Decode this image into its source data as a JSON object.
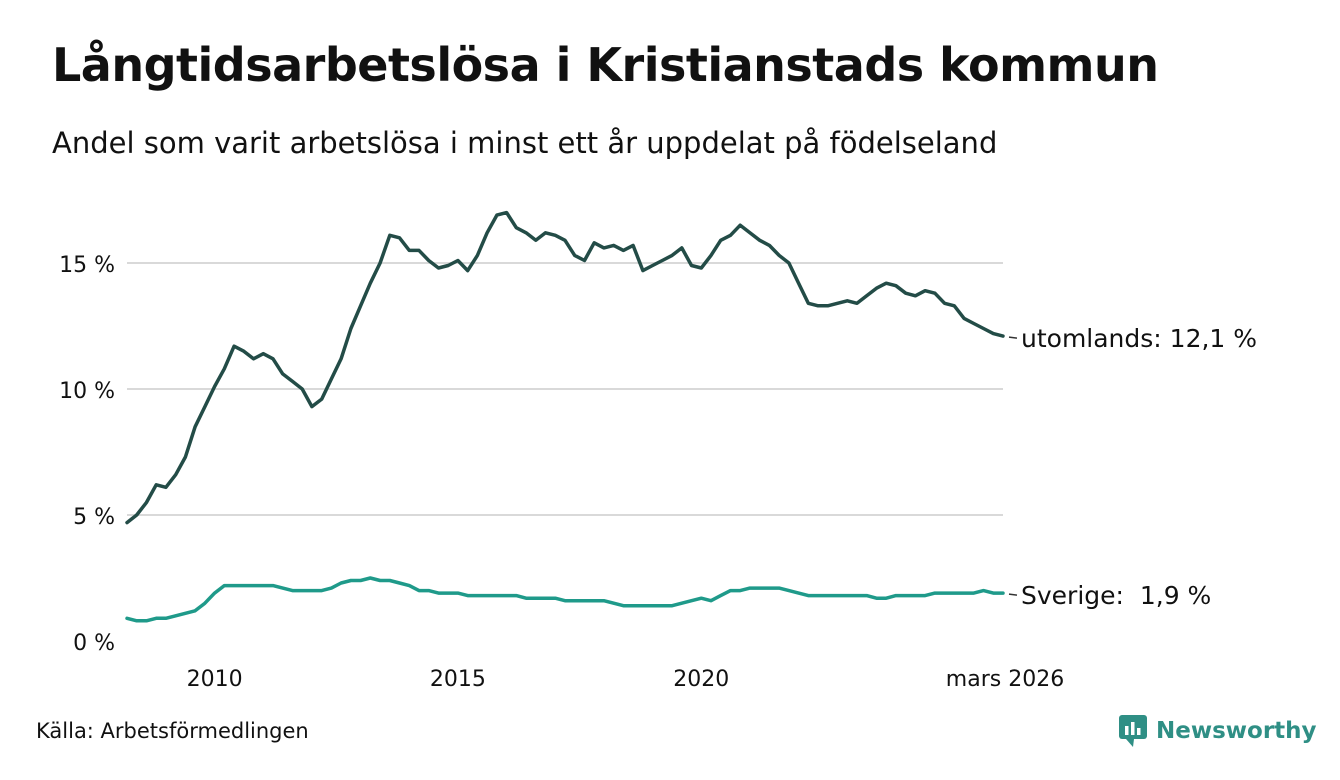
{
  "title": "Långtidsarbetslösa i Kristianstads kommun",
  "subtitle": "Andel som varit arbetslösa i minst ett år uppdelat på födelseland",
  "source": "Källa: Arbetsförmedlingen",
  "brand": {
    "name": "Newsworthy",
    "icon": "newsworthy-logo-icon"
  },
  "colors": {
    "utomlands": "#234c47",
    "sverige": "#1f9a8a",
    "grid": "#d9d9d9",
    "brand": "#2f8f85"
  },
  "chart_data": {
    "type": "line",
    "title": "Långtidsarbetslösa i Kristianstads kommun",
    "xlabel": "",
    "ylabel": "",
    "xlim": [
      2008.2,
      2026.2
    ],
    "ylim": [
      0,
      17
    ],
    "y_ticks": [
      0,
      5,
      10,
      15
    ],
    "y_tick_labels": [
      "0 %",
      "5 %",
      "10 %",
      "15 %"
    ],
    "x_ticks": [
      2010,
      2015,
      2020,
      2026.2
    ],
    "x_tick_labels": [
      "2010",
      "2015",
      "2020",
      "mars 2026"
    ],
    "grid": true,
    "series": [
      {
        "name": "utomlands",
        "end_label": "utomlands: 12,1 %",
        "x": [
          2008.2,
          2008.4,
          2008.6,
          2008.8,
          2009.0,
          2009.2,
          2009.4,
          2009.6,
          2009.8,
          2010.0,
          2010.2,
          2010.4,
          2010.6,
          2010.8,
          2011.0,
          2011.2,
          2011.4,
          2011.6,
          2011.8,
          2012.0,
          2012.2,
          2012.4,
          2012.6,
          2012.8,
          2013.0,
          2013.2,
          2013.4,
          2013.6,
          2013.8,
          2014.0,
          2014.2,
          2014.4,
          2014.6,
          2014.8,
          2015.0,
          2015.2,
          2015.4,
          2015.6,
          2015.8,
          2016.0,
          2016.2,
          2016.4,
          2016.6,
          2016.8,
          2017.0,
          2017.2,
          2017.4,
          2017.6,
          2017.8,
          2018.0,
          2018.2,
          2018.4,
          2018.6,
          2018.8,
          2019.0,
          2019.2,
          2019.4,
          2019.6,
          2019.8,
          2020.0,
          2020.2,
          2020.4,
          2020.6,
          2020.8,
          2021.0,
          2021.2,
          2021.4,
          2021.6,
          2021.8,
          2022.0,
          2022.2,
          2022.4,
          2022.6,
          2022.8,
          2023.0,
          2023.2,
          2023.4,
          2023.6,
          2023.8,
          2024.0,
          2024.2,
          2024.4,
          2024.6,
          2024.8,
          2025.0,
          2025.2,
          2025.4,
          2025.6,
          2025.8,
          2026.0,
          2026.2
        ],
        "values": [
          4.7,
          5.0,
          5.5,
          6.2,
          6.1,
          6.6,
          7.3,
          8.5,
          9.3,
          10.1,
          10.8,
          11.7,
          11.5,
          11.2,
          11.4,
          11.2,
          10.6,
          10.3,
          10.0,
          9.3,
          9.6,
          10.4,
          11.2,
          12.4,
          13.3,
          14.2,
          15.0,
          16.1,
          16.0,
          15.5,
          15.5,
          15.1,
          14.8,
          14.9,
          15.1,
          14.7,
          15.3,
          16.2,
          16.9,
          17.0,
          16.4,
          16.2,
          15.9,
          16.2,
          16.1,
          15.9,
          15.3,
          15.1,
          15.8,
          15.6,
          15.7,
          15.5,
          15.7,
          14.7,
          14.9,
          15.1,
          15.3,
          15.6,
          14.9,
          14.8,
          15.3,
          15.9,
          16.1,
          16.5,
          16.2,
          15.9,
          15.7,
          15.3,
          15.0,
          14.2,
          13.4,
          13.3,
          13.3,
          13.4,
          13.5,
          13.4,
          13.7,
          14.0,
          14.2,
          14.1,
          13.8,
          13.7,
          13.9,
          13.8,
          13.4,
          13.3,
          12.8,
          12.6,
          12.4,
          12.2,
          12.1
        ]
      },
      {
        "name": "Sverige",
        "end_label": "Sverige:  1,9 %",
        "x": [
          2008.2,
          2008.4,
          2008.6,
          2008.8,
          2009.0,
          2009.2,
          2009.4,
          2009.6,
          2009.8,
          2010.0,
          2010.2,
          2010.4,
          2010.6,
          2010.8,
          2011.0,
          2011.2,
          2011.4,
          2011.6,
          2011.8,
          2012.0,
          2012.2,
          2012.4,
          2012.6,
          2012.8,
          2013.0,
          2013.2,
          2013.4,
          2013.6,
          2013.8,
          2014.0,
          2014.2,
          2014.4,
          2014.6,
          2014.8,
          2015.0,
          2015.2,
          2015.4,
          2015.6,
          2015.8,
          2016.0,
          2016.2,
          2016.4,
          2016.6,
          2016.8,
          2017.0,
          2017.2,
          2017.4,
          2017.6,
          2017.8,
          2018.0,
          2018.2,
          2018.4,
          2018.6,
          2018.8,
          2019.0,
          2019.2,
          2019.4,
          2019.6,
          2019.8,
          2020.0,
          2020.2,
          2020.4,
          2020.6,
          2020.8,
          2021.0,
          2021.2,
          2021.4,
          2021.6,
          2021.8,
          2022.0,
          2022.2,
          2022.4,
          2022.6,
          2022.8,
          2023.0,
          2023.2,
          2023.4,
          2023.6,
          2023.8,
          2024.0,
          2024.2,
          2024.4,
          2024.6,
          2024.8,
          2025.0,
          2025.2,
          2025.4,
          2025.6,
          2025.8,
          2026.0,
          2026.2
        ],
        "values": [
          0.9,
          0.8,
          0.8,
          0.9,
          0.9,
          1.0,
          1.1,
          1.2,
          1.5,
          1.9,
          2.2,
          2.2,
          2.2,
          2.2,
          2.2,
          2.2,
          2.1,
          2.0,
          2.0,
          2.0,
          2.0,
          2.1,
          2.3,
          2.4,
          2.4,
          2.5,
          2.4,
          2.4,
          2.3,
          2.2,
          2.0,
          2.0,
          1.9,
          1.9,
          1.9,
          1.8,
          1.8,
          1.8,
          1.8,
          1.8,
          1.8,
          1.7,
          1.7,
          1.7,
          1.7,
          1.6,
          1.6,
          1.6,
          1.6,
          1.6,
          1.5,
          1.4,
          1.4,
          1.4,
          1.4,
          1.4,
          1.4,
          1.5,
          1.6,
          1.7,
          1.6,
          1.8,
          2.0,
          2.0,
          2.1,
          2.1,
          2.1,
          2.1,
          2.0,
          1.9,
          1.8,
          1.8,
          1.8,
          1.8,
          1.8,
          1.8,
          1.8,
          1.7,
          1.7,
          1.8,
          1.8,
          1.8,
          1.8,
          1.9,
          1.9,
          1.9,
          1.9,
          1.9,
          2.0,
          1.9,
          1.9
        ]
      }
    ]
  }
}
